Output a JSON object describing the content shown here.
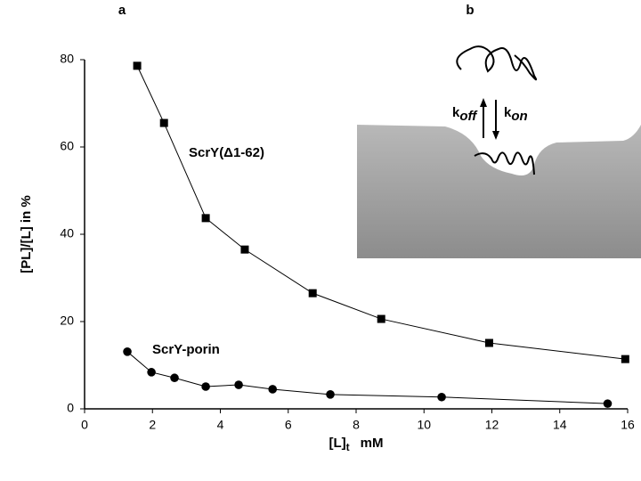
{
  "chart_data": {
    "type": "line",
    "panel_labels": [
      "a",
      "b"
    ],
    "ylabel": "[PL]/[L] in %",
    "xlabel": {
      "main": "[L]",
      "sub": "t",
      "unit": "mM"
    },
    "xlim": [
      0,
      16
    ],
    "xticks": [
      0,
      2,
      4,
      6,
      8,
      10,
      12,
      14,
      16
    ],
    "ylim": [
      0,
      80
    ],
    "yticks": [
      0,
      20,
      40,
      60,
      80
    ],
    "series": [
      {
        "name": "ScrY(Δ1-62)",
        "marker": "square",
        "color": "#000000",
        "x": [
          1.55,
          2.34,
          3.57,
          4.72,
          6.72,
          8.74,
          11.92,
          15.93
        ],
        "values": [
          78.6,
          65.5,
          43.7,
          36.5,
          26.5,
          20.6,
          15.1,
          11.4
        ]
      },
      {
        "name": "ScrY-porin",
        "marker": "circle",
        "color": "#000000",
        "x": [
          1.26,
          1.97,
          2.65,
          3.57,
          4.54,
          5.54,
          7.24,
          10.52,
          15.41
        ],
        "values": [
          13.1,
          8.4,
          7.1,
          5.1,
          5.5,
          4.5,
          3.3,
          2.7,
          1.2
        ]
      }
    ],
    "inset": {
      "off": {
        "k": "k",
        "sub": "off"
      },
      "on": {
        "k": "k",
        "sub": "on"
      }
    }
  }
}
